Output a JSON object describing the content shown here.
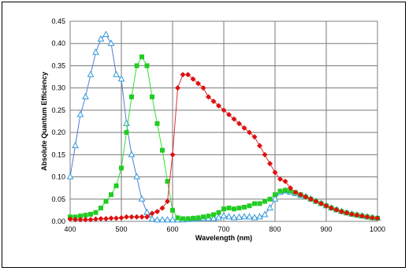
{
  "chart_data": {
    "type": "line",
    "title": "",
    "xlabel": "Wavelength (nm)",
    "ylabel": "Absolute Quantum Efficiency",
    "xlim": [
      400,
      1000
    ],
    "ylim": [
      0,
      0.45
    ],
    "xticks": [
      400,
      500,
      600,
      700,
      800,
      900,
      1000
    ],
    "yticks": [
      "0.00",
      "0.05",
      "0.10",
      "0.15",
      "0.20",
      "0.25",
      "0.30",
      "0.35",
      "0.40",
      "0.45"
    ],
    "grid": true,
    "legend": "none",
    "series": [
      {
        "color": "#4f7fd8",
        "marker_color": "#2f9ad8",
        "marker": "triangle",
        "x": [
          400,
          410,
          420,
          430,
          440,
          450,
          460,
          470,
          480,
          490,
          500,
          510,
          520,
          530,
          540,
          550,
          560,
          570,
          580,
          590,
          600,
          610,
          620,
          630,
          640,
          650,
          660,
          670,
          680,
          690,
          700,
          710,
          720,
          730,
          740,
          750,
          760,
          770,
          780,
          790,
          800,
          810,
          820,
          830,
          840,
          850,
          860,
          870,
          880,
          890,
          900,
          910,
          920,
          930,
          940,
          950,
          960,
          970,
          980,
          990,
          1000
        ],
        "y": [
          0.1,
          0.17,
          0.24,
          0.28,
          0.33,
          0.38,
          0.41,
          0.42,
          0.4,
          0.33,
          0.32,
          0.22,
          0.15,
          0.1,
          0.05,
          0.02,
          0.005,
          0.003,
          0.003,
          0.003,
          0.003,
          0.003,
          0.003,
          0.004,
          0.005,
          0.006,
          0.006,
          0.006,
          0.006,
          0.008,
          0.012,
          0.01,
          0.008,
          0.009,
          0.01,
          0.01,
          0.008,
          0.01,
          0.015,
          0.03,
          0.05,
          0.065,
          0.068,
          0.065,
          0.062,
          0.058,
          0.055,
          0.05,
          0.045,
          0.04,
          0.035,
          0.03,
          0.026,
          0.022,
          0.019,
          0.016,
          0.014,
          0.012,
          0.01,
          0.008,
          0.007
        ]
      },
      {
        "color": "#33dd33",
        "marker_color": "#22cc22",
        "marker": "square",
        "x": [
          400,
          410,
          420,
          430,
          440,
          450,
          460,
          470,
          480,
          490,
          500,
          510,
          520,
          530,
          540,
          550,
          560,
          570,
          580,
          590,
          600,
          610,
          620,
          630,
          640,
          650,
          660,
          670,
          680,
          690,
          700,
          710,
          720,
          730,
          740,
          750,
          760,
          770,
          780,
          790,
          800,
          810,
          820,
          830,
          840,
          850,
          860,
          870,
          880,
          890,
          900,
          910,
          920,
          930,
          940,
          950,
          960,
          970,
          980,
          990,
          1000
        ],
        "y": [
          0.01,
          0.01,
          0.012,
          0.014,
          0.016,
          0.02,
          0.03,
          0.045,
          0.06,
          0.08,
          0.12,
          0.2,
          0.28,
          0.35,
          0.37,
          0.35,
          0.28,
          0.22,
          0.16,
          0.09,
          0.025,
          0.008,
          0.006,
          0.006,
          0.007,
          0.008,
          0.01,
          0.012,
          0.015,
          0.02,
          0.028,
          0.03,
          0.028,
          0.03,
          0.032,
          0.035,
          0.04,
          0.04,
          0.045,
          0.05,
          0.06,
          0.068,
          0.07,
          0.068,
          0.065,
          0.06,
          0.055,
          0.05,
          0.045,
          0.04,
          0.035,
          0.03,
          0.026,
          0.022,
          0.019,
          0.016,
          0.014,
          0.012,
          0.01,
          0.008,
          0.007
        ]
      },
      {
        "color": "#e03030",
        "marker_color": "#dd1111",
        "marker": "diamond",
        "x": [
          400,
          410,
          420,
          430,
          440,
          450,
          460,
          470,
          480,
          490,
          500,
          510,
          520,
          530,
          540,
          550,
          560,
          570,
          580,
          590,
          600,
          610,
          620,
          630,
          640,
          650,
          660,
          670,
          680,
          690,
          700,
          710,
          720,
          730,
          740,
          750,
          760,
          770,
          780,
          790,
          800,
          810,
          820,
          830,
          840,
          850,
          860,
          870,
          880,
          890,
          900,
          910,
          920,
          930,
          940,
          950,
          960,
          970,
          980,
          990,
          1000
        ],
        "y": [
          0.005,
          0.004,
          0.004,
          0.004,
          0.004,
          0.005,
          0.006,
          0.006,
          0.007,
          0.007,
          0.008,
          0.01,
          0.01,
          0.01,
          0.01,
          0.01,
          0.018,
          0.022,
          0.03,
          0.045,
          0.15,
          0.3,
          0.33,
          0.33,
          0.32,
          0.31,
          0.3,
          0.28,
          0.27,
          0.26,
          0.25,
          0.24,
          0.23,
          0.22,
          0.21,
          0.2,
          0.19,
          0.17,
          0.15,
          0.13,
          0.11,
          0.095,
          0.09,
          0.075,
          0.065,
          0.06,
          0.055,
          0.05,
          0.045,
          0.04,
          0.035,
          0.03,
          0.026,
          0.022,
          0.019,
          0.016,
          0.014,
          0.012,
          0.01,
          0.008,
          0.007
        ]
      }
    ]
  }
}
